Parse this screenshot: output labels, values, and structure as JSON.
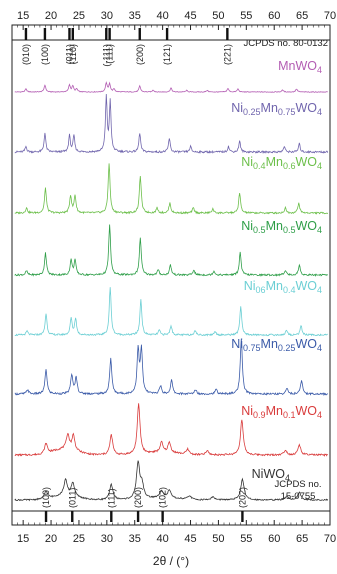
{
  "chart_data": {
    "type": "line",
    "xlabel": "2θ / (°)",
    "xlim": [
      13,
      70
    ],
    "x_ticks": [
      15,
      20,
      25,
      30,
      35,
      40,
      45,
      50,
      55,
      60,
      65,
      70
    ],
    "grid": false,
    "top_reference": {
      "label": "JCPDS no. 80-0132",
      "peaks": [
        {
          "x": 15.5,
          "hkl": "(010)"
        },
        {
          "x": 18.9,
          "hkl": "(100)"
        },
        {
          "x": 23.3,
          "hkl": "(011)"
        },
        {
          "x": 23.9,
          "hkl": "(110)"
        },
        {
          "x": 29.9,
          "hkl": "(-111)"
        },
        {
          "x": 30.5,
          "hkl": "(111)"
        },
        {
          "x": 35.9,
          "hkl": "(200)"
        },
        {
          "x": 40.8,
          "hkl": "(121)"
        },
        {
          "x": 51.6,
          "hkl": "(221)"
        }
      ]
    },
    "bottom_reference": {
      "label_line1": "JCPDS no.",
      "label_line2": "15-0755",
      "peaks": [
        {
          "x": 19.1,
          "hkl": "(100)"
        },
        {
          "x": 23.8,
          "hkl": "(011)"
        },
        {
          "x": 30.8,
          "hkl": "(111)"
        },
        {
          "x": 35.6,
          "hkl": "(200)"
        },
        {
          "x": 40.0,
          "hkl": "(102)"
        },
        {
          "x": 54.3,
          "hkl": "(202)"
        }
      ]
    },
    "series": [
      {
        "name_parts": [
          "MnWO",
          "4"
        ],
        "color": "#b35db3",
        "peaks": [
          [
            15.5,
            0.15
          ],
          [
            18.9,
            0.35
          ],
          [
            23.3,
            0.35
          ],
          [
            23.9,
            0.3
          ],
          [
            24.6,
            0.15
          ],
          [
            29.9,
            0.45
          ],
          [
            30.5,
            0.4
          ],
          [
            31.3,
            0.15
          ],
          [
            35.9,
            0.3
          ],
          [
            38.3,
            0.1
          ],
          [
            41.5,
            0.2
          ],
          [
            44.3,
            0.08
          ],
          [
            48.0,
            0.08
          ],
          [
            51.7,
            0.18
          ],
          [
            53.5,
            0.15
          ],
          [
            61.5,
            0.1
          ],
          [
            64.0,
            0.15
          ]
        ]
      },
      {
        "name_parts": [
          "Ni",
          "0.25",
          "Mn",
          "0.75",
          "WO",
          "4"
        ],
        "color": "#7065ad",
        "peaks": [
          [
            15.5,
            0.1
          ],
          [
            18.9,
            0.35
          ],
          [
            23.3,
            0.3
          ],
          [
            24.1,
            0.3
          ],
          [
            29.9,
            1.0
          ],
          [
            30.6,
            0.9
          ],
          [
            35.9,
            0.35
          ],
          [
            41.2,
            0.25
          ],
          [
            45.0,
            0.1
          ],
          [
            51.8,
            0.1
          ],
          [
            53.8,
            0.2
          ],
          [
            61.8,
            0.1
          ],
          [
            64.5,
            0.15
          ]
        ]
      },
      {
        "name_parts": [
          "Ni",
          "0.4",
          "Mn",
          "0.6",
          "WO",
          "4"
        ],
        "color": "#6cbf4a",
        "peaks": [
          [
            15.6,
            0.1
          ],
          [
            19.0,
            0.5
          ],
          [
            23.5,
            0.35
          ],
          [
            24.3,
            0.35
          ],
          [
            30.4,
            1.0
          ],
          [
            36.0,
            0.75
          ],
          [
            39.0,
            0.1
          ],
          [
            41.3,
            0.2
          ],
          [
            45.5,
            0.1
          ],
          [
            49.0,
            0.08
          ],
          [
            53.8,
            0.4
          ],
          [
            62.0,
            0.1
          ],
          [
            64.4,
            0.2
          ]
        ]
      },
      {
        "name_parts": [
          "Ni",
          "0.5",
          "Mn",
          "0.5",
          "WO",
          "4"
        ],
        "color": "#2e9e48",
        "peaks": [
          [
            15.6,
            0.08
          ],
          [
            19.0,
            0.45
          ],
          [
            23.6,
            0.3
          ],
          [
            24.3,
            0.3
          ],
          [
            30.5,
            1.0
          ],
          [
            36.0,
            0.75
          ],
          [
            39.2,
            0.1
          ],
          [
            41.4,
            0.2
          ],
          [
            45.6,
            0.1
          ],
          [
            49.2,
            0.08
          ],
          [
            53.9,
            0.45
          ],
          [
            62.0,
            0.1
          ],
          [
            64.5,
            0.2
          ]
        ]
      },
      {
        "name_parts": [
          "Ni",
          "06",
          "Mn",
          "0.4",
          "WO",
          "4"
        ],
        "color": "#6ccfd4",
        "peaks": [
          [
            15.7,
            0.08
          ],
          [
            19.1,
            0.45
          ],
          [
            23.6,
            0.35
          ],
          [
            24.4,
            0.35
          ],
          [
            30.6,
            1.0
          ],
          [
            36.1,
            0.75
          ],
          [
            39.4,
            0.1
          ],
          [
            41.5,
            0.2
          ],
          [
            45.8,
            0.1
          ],
          [
            49.4,
            0.08
          ],
          [
            54.0,
            0.6
          ],
          [
            62.2,
            0.1
          ],
          [
            64.8,
            0.2
          ]
        ]
      },
      {
        "name_parts": [
          "Ni",
          "0.75",
          "Mn",
          "0.25",
          "WO",
          "4"
        ],
        "color": "#3a5aa8",
        "peaks": [
          [
            15.8,
            0.08
          ],
          [
            19.1,
            0.45
          ],
          [
            23.7,
            0.35
          ],
          [
            24.5,
            0.3
          ],
          [
            30.7,
            0.65
          ],
          [
            35.6,
            0.8
          ],
          [
            36.2,
            0.8
          ],
          [
            39.6,
            0.15
          ],
          [
            41.6,
            0.25
          ],
          [
            45.9,
            0.08
          ],
          [
            49.6,
            0.08
          ],
          [
            54.1,
            1.0
          ],
          [
            62.3,
            0.1
          ],
          [
            64.9,
            0.25
          ]
        ]
      },
      {
        "name_parts": [
          "Ni",
          "0.9",
          "Mn",
          "0.1",
          "WO",
          "4"
        ],
        "color": "#d93b3b",
        "peaks": [
          [
            19.1,
            0.2
          ],
          [
            23.0,
            0.3
          ],
          [
            24.0,
            0.3
          ],
          [
            30.8,
            0.4
          ],
          [
            35.7,
            1.0
          ],
          [
            39.8,
            0.2
          ],
          [
            41.2,
            0.2
          ],
          [
            44.5,
            0.1
          ],
          [
            48.0,
            0.08
          ],
          [
            54.2,
            0.7
          ],
          [
            62.0,
            0.1
          ],
          [
            64.5,
            0.2
          ]
        ]
      },
      {
        "name_parts": [
          "NiWO",
          "4"
        ],
        "color": "#333333",
        "peaks": [
          [
            19.1,
            0.2
          ],
          [
            22.6,
            0.4
          ],
          [
            23.9,
            0.35
          ],
          [
            30.8,
            0.4
          ],
          [
            35.6,
            0.95
          ],
          [
            36.3,
            0.35
          ],
          [
            39.8,
            0.2
          ],
          [
            41.2,
            0.2
          ],
          [
            44.8,
            0.1
          ],
          [
            49.0,
            0.08
          ],
          [
            54.3,
            0.55
          ],
          [
            62.3,
            0.1
          ],
          [
            64.5,
            0.2
          ]
        ]
      }
    ]
  }
}
